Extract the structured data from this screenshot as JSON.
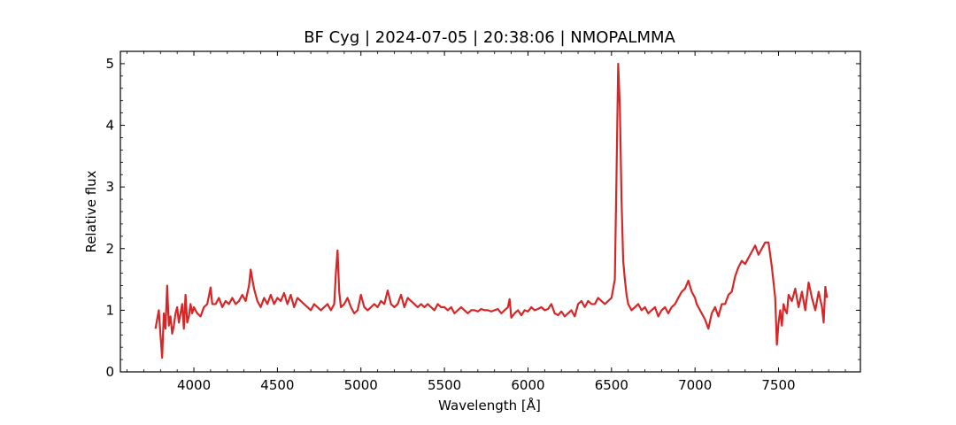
{
  "chart_data": {
    "type": "line",
    "title": "BF Cyg | 2024-07-05 | 20:38:06 | NMOPALMMA",
    "xlabel": "Wavelength [Å]",
    "ylabel": "Relative flux",
    "xlim": [
      3560,
      7990
    ],
    "ylim": [
      0,
      5.2
    ],
    "xticks": [
      4000,
      4500,
      5000,
      5500,
      6000,
      6500,
      7000,
      7500
    ],
    "xtick_labels": [
      "4000",
      "4500",
      "5000",
      "5500",
      "6000",
      "6500",
      "7000",
      "7500"
    ],
    "yticks": [
      0,
      1,
      2,
      3,
      4,
      5
    ],
    "ytick_labels": [
      "0",
      "1",
      "2",
      "3",
      "4",
      "5"
    ],
    "grid": false,
    "series": [
      {
        "color": "#d62728",
        "x": [
          3770,
          3790,
          3800,
          3810,
          3820,
          3830,
          3840,
          3850,
          3860,
          3870,
          3880,
          3890,
          3900,
          3910,
          3920,
          3930,
          3940,
          3950,
          3960,
          3970,
          3980,
          3990,
          4000,
          4020,
          4040,
          4060,
          4080,
          4100,
          4110,
          4130,
          4150,
          4170,
          4190,
          4210,
          4230,
          4250,
          4270,
          4290,
          4310,
          4330,
          4340,
          4360,
          4380,
          4400,
          4420,
          4440,
          4460,
          4480,
          4500,
          4520,
          4540,
          4560,
          4580,
          4600,
          4620,
          4640,
          4660,
          4680,
          4700,
          4720,
          4740,
          4760,
          4780,
          4800,
          4820,
          4840,
          4850,
          4860,
          4870,
          4880,
          4900,
          4920,
          4940,
          4960,
          4980,
          5000,
          5020,
          5040,
          5060,
          5080,
          5100,
          5120,
          5140,
          5160,
          5180,
          5200,
          5220,
          5240,
          5260,
          5280,
          5300,
          5320,
          5340,
          5360,
          5380,
          5400,
          5420,
          5440,
          5460,
          5480,
          5500,
          5520,
          5540,
          5560,
          5580,
          5600,
          5620,
          5640,
          5660,
          5680,
          5700,
          5720,
          5740,
          5760,
          5780,
          5800,
          5820,
          5840,
          5860,
          5880,
          5890,
          5900,
          5920,
          5940,
          5960,
          5980,
          6000,
          6020,
          6040,
          6060,
          6080,
          6100,
          6120,
          6140,
          6160,
          6180,
          6200,
          6220,
          6240,
          6260,
          6280,
          6300,
          6320,
          6340,
          6360,
          6380,
          6400,
          6420,
          6440,
          6460,
          6480,
          6500,
          6520,
          6530,
          6540,
          6550,
          6560,
          6570,
          6580,
          6590,
          6600,
          6620,
          6640,
          6660,
          6680,
          6700,
          6720,
          6740,
          6760,
          6780,
          6800,
          6820,
          6840,
          6860,
          6880,
          6900,
          6920,
          6940,
          6960,
          6980,
          7000,
          7010,
          7020,
          7040,
          7060,
          7080,
          7100,
          7120,
          7140,
          7160,
          7180,
          7200,
          7220,
          7240,
          7260,
          7280,
          7300,
          7320,
          7340,
          7360,
          7380,
          7400,
          7420,
          7440,
          7460,
          7480,
          7490,
          7500,
          7510,
          7520,
          7530,
          7540,
          7550,
          7560,
          7580,
          7600,
          7620,
          7640,
          7660,
          7680,
          7700,
          7720,
          7740,
          7760,
          7770,
          7780,
          7790
        ],
        "y": [
          0.7,
          1.0,
          0.6,
          0.23,
          0.95,
          0.7,
          1.4,
          0.75,
          0.9,
          0.62,
          0.75,
          0.95,
          1.05,
          0.8,
          0.95,
          1.1,
          0.7,
          1.25,
          0.8,
          0.9,
          1.1,
          0.95,
          1.05,
          0.95,
          0.9,
          1.05,
          1.1,
          1.37,
          1.1,
          1.1,
          1.2,
          1.05,
          1.15,
          1.1,
          1.2,
          1.1,
          1.15,
          1.25,
          1.15,
          1.4,
          1.66,
          1.35,
          1.15,
          1.05,
          1.2,
          1.1,
          1.25,
          1.1,
          1.2,
          1.15,
          1.28,
          1.1,
          1.25,
          1.05,
          1.2,
          1.15,
          1.1,
          1.05,
          1.0,
          1.1,
          1.05,
          1.0,
          1.05,
          1.1,
          1.0,
          1.1,
          1.6,
          1.97,
          1.3,
          1.05,
          1.1,
          1.2,
          1.05,
          0.95,
          1.0,
          1.25,
          1.05,
          1.0,
          1.05,
          1.1,
          1.05,
          1.15,
          1.1,
          1.32,
          1.1,
          1.05,
          1.1,
          1.25,
          1.05,
          1.2,
          1.15,
          1.1,
          1.05,
          1.1,
          1.05,
          1.1,
          1.05,
          1.0,
          1.1,
          1.05,
          1.05,
          1.0,
          1.05,
          0.95,
          1.0,
          1.05,
          1.0,
          0.95,
          1.0,
          1.0,
          0.98,
          1.02,
          1.0,
          1.0,
          0.98,
          1.0,
          1.02,
          0.95,
          1.0,
          1.05,
          1.18,
          0.88,
          0.95,
          1.0,
          0.92,
          1.0,
          0.98,
          1.05,
          1.0,
          1.02,
          1.05,
          1.0,
          1.02,
          1.1,
          0.95,
          0.92,
          0.98,
          0.9,
          0.95,
          1.0,
          0.9,
          1.1,
          1.15,
          1.05,
          1.15,
          1.1,
          1.1,
          1.2,
          1.15,
          1.1,
          1.15,
          1.2,
          1.5,
          3.2,
          5.0,
          4.3,
          2.8,
          1.8,
          1.5,
          1.25,
          1.1,
          1.0,
          1.05,
          1.1,
          1.0,
          1.05,
          0.95,
          1.0,
          1.05,
          0.9,
          1.0,
          1.05,
          0.95,
          1.05,
          1.1,
          1.2,
          1.3,
          1.35,
          1.48,
          1.3,
          1.2,
          1.1,
          1.05,
          0.95,
          0.85,
          0.7,
          0.95,
          1.05,
          0.9,
          1.1,
          1.1,
          1.25,
          1.3,
          1.55,
          1.7,
          1.8,
          1.75,
          1.85,
          1.95,
          2.05,
          1.9,
          2.0,
          2.1,
          2.1,
          1.7,
          1.2,
          0.44,
          0.8,
          1.0,
          0.75,
          1.1,
          1.0,
          0.95,
          1.25,
          1.15,
          1.35,
          1.05,
          1.3,
          1.0,
          1.45,
          1.2,
          1.0,
          1.3,
          1.05,
          0.8,
          1.38,
          1.2
        ]
      }
    ]
  }
}
